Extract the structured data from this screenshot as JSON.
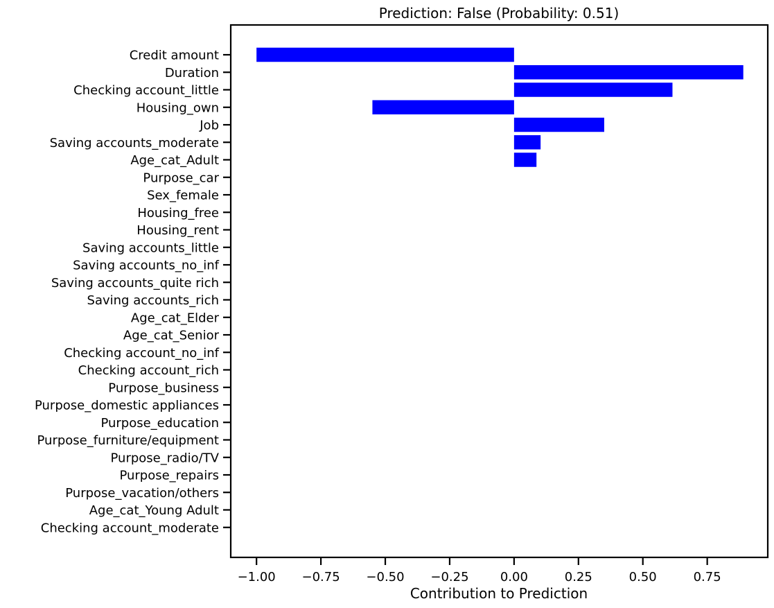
{
  "chart_data": {
    "type": "bar",
    "orientation": "horizontal",
    "title": "Prediction: False (Probability: 0.51)",
    "xlabel": "Contribution to Prediction",
    "ylabel": "",
    "xlim": [
      -1.1,
      0.985
    ],
    "xticks": [
      -1.0,
      -0.75,
      -0.5,
      -0.25,
      0.0,
      0.25,
      0.5,
      0.75
    ],
    "xtick_labels": [
      "−1.00",
      "−0.75",
      "−0.50",
      "−0.25",
      "0.00",
      "0.25",
      "0.50",
      "0.75"
    ],
    "grid": false,
    "bar_color": "#0000ff",
    "categories": [
      "Credit amount",
      "Duration",
      "Checking account_little",
      "Housing_own",
      "Job",
      "Saving accounts_moderate",
      "Age_cat_Adult",
      "Purpose_car",
      "Sex_female",
      "Housing_free",
      "Housing_rent",
      "Saving accounts_little",
      "Saving accounts_no_inf",
      "Saving accounts_quite rich",
      "Saving accounts_rich",
      "Age_cat_Elder",
      "Age_cat_Senior",
      "Checking account_no_inf",
      "Checking account_rich",
      "Purpose_business",
      "Purpose_domestic appliances",
      "Purpose_education",
      "Purpose_furniture/equipment",
      "Purpose_radio/TV",
      "Purpose_repairs",
      "Purpose_vacation/others",
      "Age_cat_Young Adult",
      "Checking account_moderate"
    ],
    "values": [
      -1.0,
      0.89,
      0.615,
      -0.55,
      0.35,
      0.103,
      0.087,
      0,
      0,
      0,
      0,
      0,
      0,
      0,
      0,
      0,
      0,
      0,
      0,
      0,
      0,
      0,
      0,
      0,
      0,
      0,
      0,
      0
    ]
  }
}
